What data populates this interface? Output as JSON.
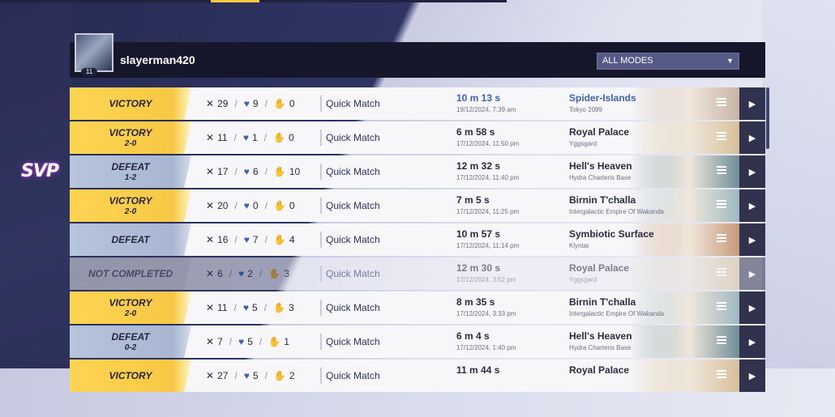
{
  "header": {
    "username": "slayerman420",
    "avatar_level": "11",
    "mode_filter": "ALL MODES"
  },
  "svp_badge": "SVP",
  "colors": {
    "victory": "#f8c844",
    "defeat": "#a8b6d2",
    "accent_blue": "#3d62b8",
    "header_bg": "#16172b",
    "play_button": "#31334e"
  },
  "icons": {
    "kills": "crossed-swords-icon",
    "deaths": "broken-heart-icon",
    "assists": "helping-hand-icon",
    "menu": "list-icon",
    "play": "play-icon",
    "dropdown": "chevron-down-icon"
  },
  "matches": [
    {
      "result": "VICTORY",
      "score": "",
      "kills": "29",
      "deaths": "9",
      "assists": "0",
      "mode": "Quick Match",
      "duration": "10 m 13 s",
      "date": "19/12/2024, 7:39 am",
      "map": "Spider-Islands",
      "region": "Tokyo 2099",
      "thumb": "#c9b4a9"
    },
    {
      "result": "VICTORY",
      "score": "2-0",
      "kills": "11",
      "deaths": "1",
      "assists": "0",
      "mode": "Quick Match",
      "duration": "6 m 58 s",
      "date": "17/12/2024, 11:50 pm",
      "map": "Royal Palace",
      "region": "Yggsgard",
      "thumb": "#d7c19c"
    },
    {
      "result": "DEFEAT",
      "score": "1-2",
      "kills": "17",
      "deaths": "6",
      "assists": "10",
      "mode": "Quick Match",
      "duration": "12 m 32 s",
      "date": "17/12/2024, 11:40 pm",
      "map": "Hell's Heaven",
      "region": "Hydra Charteris Base",
      "thumb": "#6f8d98"
    },
    {
      "result": "VICTORY",
      "score": "2-0",
      "kills": "20",
      "deaths": "0",
      "assists": "0",
      "mode": "Quick Match",
      "duration": "7 m 5 s",
      "date": "17/12/2024, 11:25 pm",
      "map": "Birnin T'challa",
      "region": "Intergalactic Empire Of Wakanda",
      "thumb": "#9fb8c2"
    },
    {
      "result": "DEFEAT",
      "score": "",
      "kills": "16",
      "deaths": "7",
      "assists": "4",
      "mode": "Quick Match",
      "duration": "10 m 57 s",
      "date": "17/12/2024, 11:14 pm",
      "map": "Symbiotic Surface",
      "region": "Klyntar",
      "thumb": "#c79a7c"
    },
    {
      "result": "NOT COMPLETED",
      "score": "",
      "kills": "6",
      "deaths": "2",
      "assists": "3",
      "mode": "Quick Match",
      "duration": "12 m 30 s",
      "date": "17/12/2024, 3:52 pm",
      "map": "Royal Palace",
      "region": "Yggsgard",
      "thumb": "#d7c19c"
    },
    {
      "result": "VICTORY",
      "score": "2-0",
      "kills": "11",
      "deaths": "5",
      "assists": "3",
      "mode": "Quick Match",
      "duration": "8 m 35 s",
      "date": "17/12/2024, 3:33 pm",
      "map": "Birnin T'challa",
      "region": "Intergalactic Empire Of Wakanda",
      "thumb": "#9fb8c2"
    },
    {
      "result": "DEFEAT",
      "score": "0-2",
      "kills": "7",
      "deaths": "5",
      "assists": "1",
      "mode": "Quick Match",
      "duration": "6 m 4 s",
      "date": "17/12/2024, 1:40 pm",
      "map": "Hell's Heaven",
      "region": "Hydra Charteris Base",
      "thumb": "#6f8d98"
    },
    {
      "result": "VICTORY",
      "score": "",
      "kills": "27",
      "deaths": "5",
      "assists": "2",
      "mode": "Quick Match",
      "duration": "11 m 44 s",
      "date": "",
      "map": "Royal Palace",
      "region": "",
      "thumb": "#d7c19c"
    }
  ]
}
